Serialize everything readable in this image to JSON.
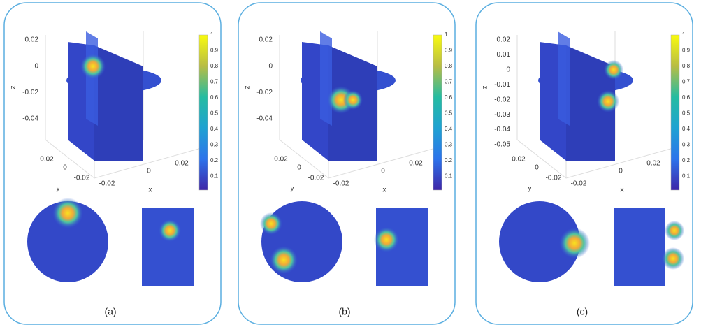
{
  "panels": [
    {
      "label": "(a)",
      "z_label": "z",
      "y_label": "y",
      "x_label": "x",
      "z_ticks": [
        "0.02",
        "0",
        "-0.02",
        "-0.04"
      ],
      "y_ticks": [
        "0.02",
        "0",
        "-0.02"
      ],
      "x_ticks": [
        "-0.02",
        "0",
        "0.02"
      ],
      "colorbar_ticks": [
        "1",
        "0.9",
        "0.8",
        "0.7",
        "0.6",
        "0.5",
        "0.4",
        "0.3",
        "0.2",
        "0.1"
      ]
    },
    {
      "label": "(b)",
      "z_label": "z",
      "y_label": "y",
      "x_label": "x",
      "z_ticks": [
        "0.02",
        "0",
        "-0.02",
        "-0.04"
      ],
      "y_ticks": [
        "0.02",
        "0",
        "-0.02"
      ],
      "x_ticks": [
        "-0.02",
        "0",
        "0.02"
      ],
      "colorbar_ticks": [
        "1",
        "0.9",
        "0.8",
        "0.7",
        "0.6",
        "0.5",
        "0.4",
        "0.3",
        "0.2",
        "0.1"
      ]
    },
    {
      "label": "(c)",
      "z_label": "z",
      "y_label": "y",
      "x_label": "x",
      "z_ticks": [
        "0.02",
        "0.01",
        "0",
        "-0.01",
        "-0.02",
        "-0.03",
        "-0.04",
        "-0.05"
      ],
      "y_ticks": [
        "0.02",
        "0",
        "-0.02"
      ],
      "x_ticks": [
        "-0.02",
        "0",
        "0.02"
      ],
      "colorbar_ticks": [
        "1",
        "0.9",
        "0.8",
        "0.7",
        "0.6",
        "0.5",
        "0.4",
        "0.3",
        "0.2",
        "0.1"
      ]
    }
  ]
}
